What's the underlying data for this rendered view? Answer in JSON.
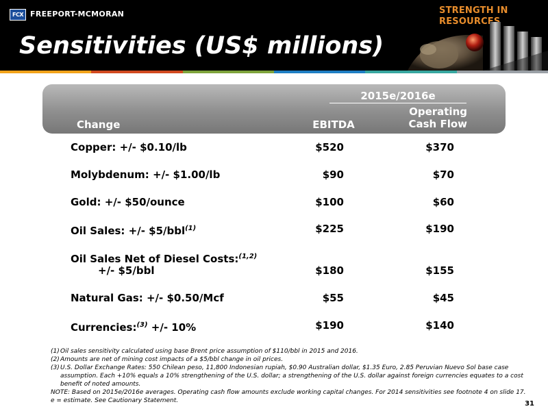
{
  "header": {
    "company": "FREEPORT-MCMORAN",
    "logo_mark": "FCX",
    "tagline": "STRENGTH IN RESOURCES",
    "title": "Sensitivities (US$ millions)"
  },
  "colors": {
    "stripe": [
      "#f2a31a",
      "#d24a20",
      "#7fa43c",
      "#1f7fc4",
      "#38a7a0",
      "#9aa0a6"
    ],
    "header_bg": "#000000",
    "table_header": "#8f8f8f"
  },
  "table": {
    "period": "2015e/2016e",
    "col_change": "Change",
    "col_ebitda": "EBITDA",
    "col_ocf_line1": "Operating",
    "col_ocf_line2": "Cash Flow",
    "rows": [
      {
        "label": "Copper: +/- $0.10/lb",
        "sup": "",
        "ebitda": "$520",
        "ocf": "$370"
      },
      {
        "label": "Molybdenum: +/- $1.00/lb",
        "sup": "",
        "ebitda": "$90",
        "ocf": "$70"
      },
      {
        "label": "Gold: +/- $50/ounce",
        "sup": "",
        "ebitda": "$100",
        "ocf": "$60"
      },
      {
        "label": "Oil Sales: +/- $5/bbl",
        "sup": "(1)",
        "ebitda": "$225",
        "ocf": "$190"
      },
      {
        "label": "Oil Sales Net of Diesel Costs:",
        "sup": "(1,2)",
        "label2": "+/- $5/bbl",
        "ebitda": "$180",
        "ocf": "$155"
      },
      {
        "label": "Natural Gas: +/- $0.50/Mcf",
        "sup": "",
        "ebitda": "$55",
        "ocf": "$45"
      },
      {
        "label": "Currencies:",
        "sup": "(3)",
        "label_after": " +/- 10%",
        "ebitda": "$190",
        "ocf": "$140"
      }
    ]
  },
  "footnotes": [
    {
      "num": "(1)",
      "text": "Oil sales sensitivity calculated using base Brent price assumption of $110/bbl in 2015 and 2016."
    },
    {
      "num": "(2)",
      "text": "Amounts are net of mining cost impacts of a $5/bbl change in oil prices."
    },
    {
      "num": "(3)",
      "text": "U.S. Dollar Exchange Rates: 550 Chilean peso, 11,800 Indonesian rupiah, $0.90 Australian dollar, $1.35 Euro, 2.85 Peruvian Nuevo Sol base case assumption. Each +10% equals a 10% strengthening of the U.S. dollar; a strengthening of the U.S. dollar against foreign currencies equates to a cost benefit of noted amounts."
    }
  ],
  "note_line": "NOTE: Based on 2015e/2016e averages. Operating cash flow amounts exclude working capital changes.  For 2014 sensitivities see footnote 4 on slide 17.",
  "estimate_line": "e = estimate. See Cautionary Statement.",
  "page_number": "31"
}
